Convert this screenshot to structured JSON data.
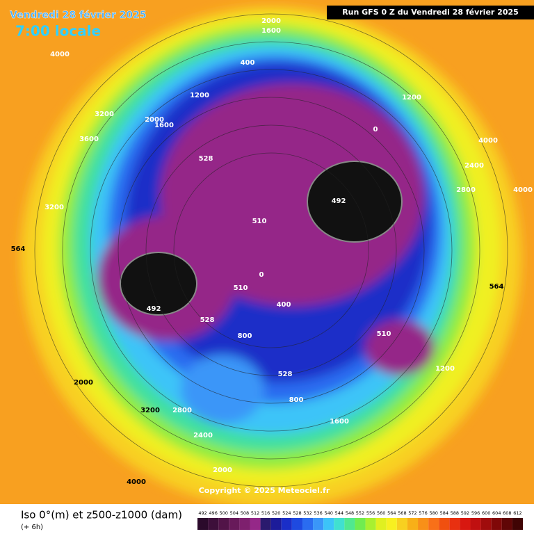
{
  "header": {
    "date": "Vendredi 28 février 2025",
    "time": "7:00 locale",
    "run": "Run GFS 0 Z du Vendredi 28 février 2025"
  },
  "copyright": "Copyright © 2025 Meteociel.fr",
  "footer": {
    "title": "Iso 0°(m) et z500-z1000 (dam)",
    "step": "(+ 6h)"
  },
  "scale": {
    "values": [
      492,
      496,
      500,
      504,
      508,
      512,
      516,
      520,
      524,
      528,
      532,
      536,
      540,
      544,
      548,
      552,
      556,
      560,
      564,
      568,
      572,
      576,
      580,
      584,
      588,
      592,
      596,
      600,
      604,
      608,
      612
    ],
    "colors": [
      "#2b0a2b",
      "#3d0f3a",
      "#521448",
      "#681a5a",
      "#7e206e",
      "#952888",
      "#2a1a6e",
      "#1c1c9a",
      "#1a2ec8",
      "#1e4ae0",
      "#2a6cf0",
      "#3a96f8",
      "#3cc4f8",
      "#40e0d0",
      "#50e890",
      "#70ec50",
      "#a8f030",
      "#e0f020",
      "#f8f020",
      "#f8d020",
      "#f8b018",
      "#f89018",
      "#f87018",
      "#f05010",
      "#e83010",
      "#d81810",
      "#c01010",
      "#a00c0c",
      "#800808",
      "#600606",
      "#400404"
    ]
  },
  "map_labels": [
    "2000",
    "1600",
    "4000",
    "400",
    "1200",
    "2000",
    "1600",
    "3200",
    "0",
    "1200",
    "492",
    "510",
    "492",
    "510",
    "528",
    "400",
    "800",
    "0",
    "510",
    "1200",
    "2400",
    "2800",
    "4000",
    "4000",
    "3600",
    "3200",
    "2800",
    "2400",
    "2000",
    "1600",
    "800",
    "528",
    "528",
    "3200",
    "2000",
    "564",
    "564",
    "4000"
  ]
}
